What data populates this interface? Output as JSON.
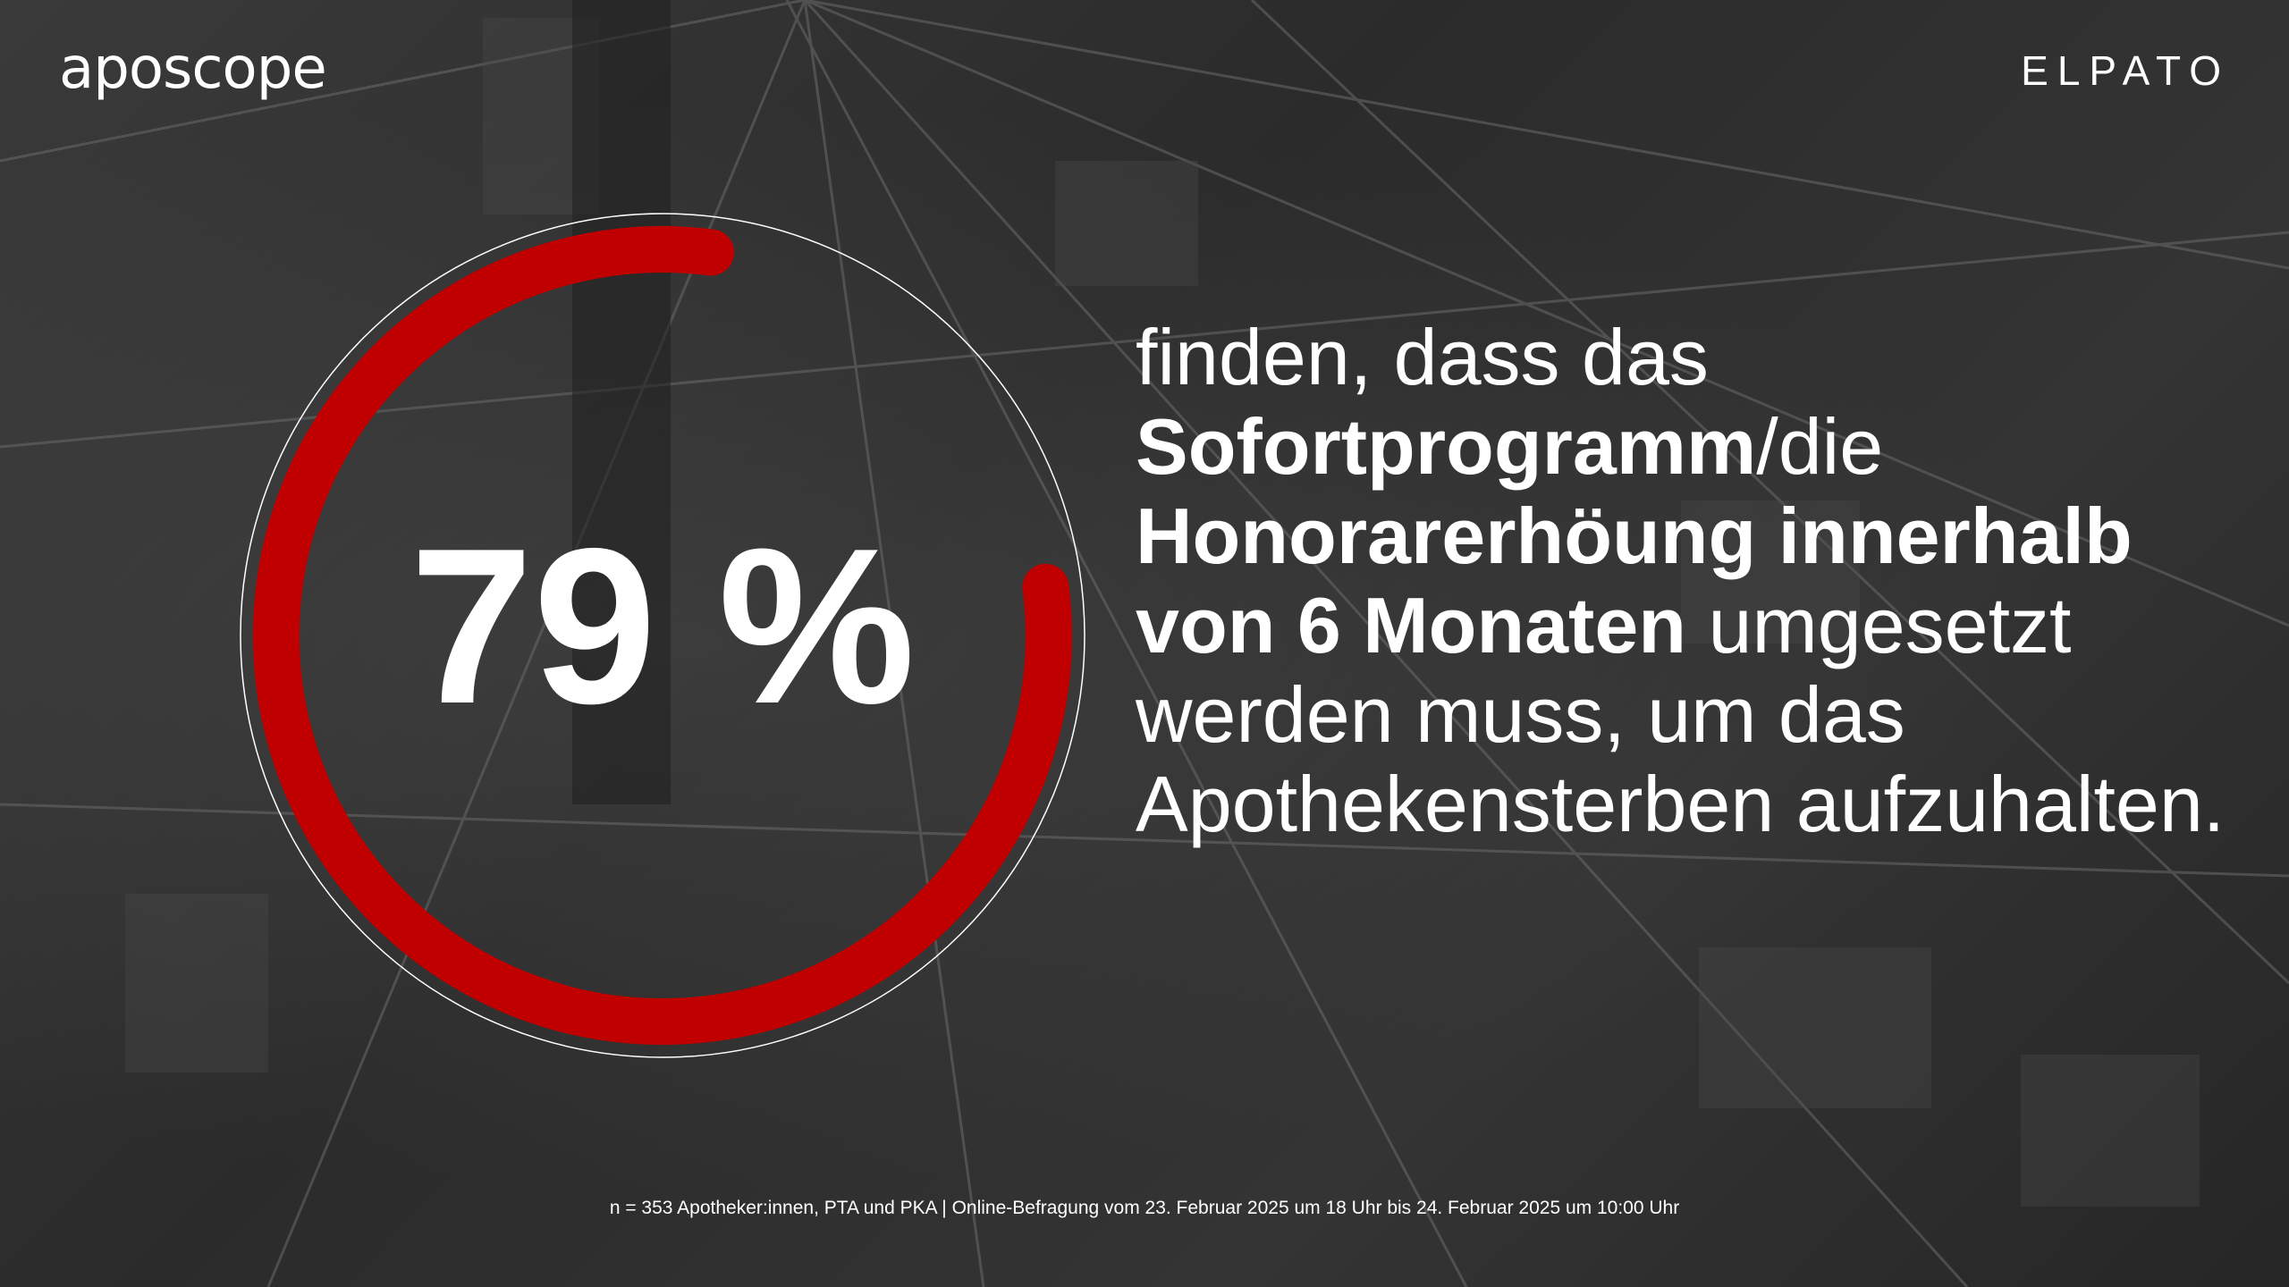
{
  "brand": {
    "left_logo": "aposcope",
    "right_logo": "ELPATO"
  },
  "stat": {
    "value_label": "79 %",
    "fraction": 0.79,
    "ring_color": "#c00000"
  },
  "statement": {
    "part1": "finden, dass das",
    "bold1": "Sofortprogramm",
    "part2": "/die",
    "bold2": "Honorarerhöung innerhalb von 6 Monaten",
    "part3": "umgesetzt werden muss, um das Apothekensterben aufzuhalten."
  },
  "footnote": "n = 353 Apotheker:innen, PTA und PKA | Online-Befragung vom 23. Februar 2025 um 18 Uhr bis 24. Februar 2025 um 10:00 Uhr"
}
